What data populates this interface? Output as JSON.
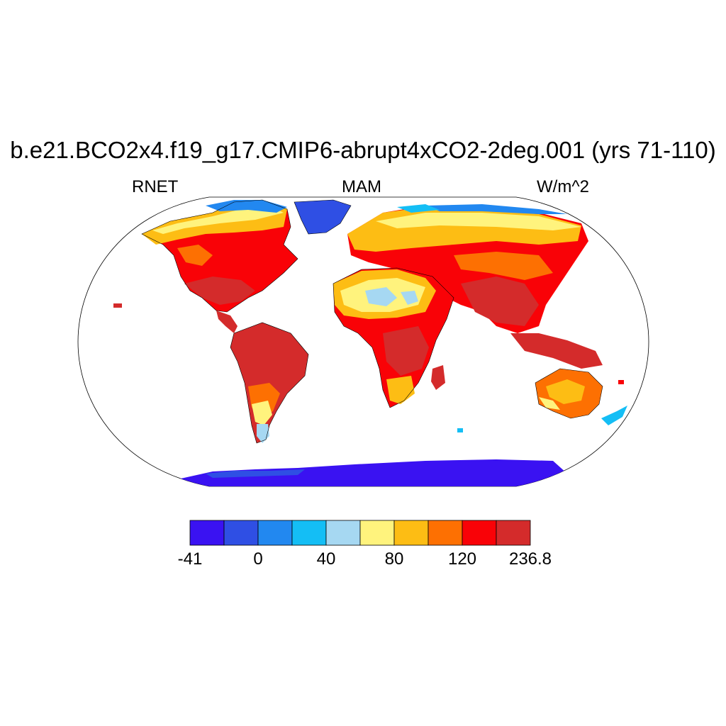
{
  "title": "b.e21.BCO2x4.f19_g17.CMIP6-abrupt4xCO2-2deg.001 (yrs 71-110)",
  "subtitle_left": "RNET",
  "subtitle_center": "MAM",
  "subtitle_right": "W/m^2",
  "colorbar": {
    "colors": [
      "#3a12f2",
      "#2f4fe4",
      "#2288f0",
      "#14bef5",
      "#a6d8f2",
      "#fff37d",
      "#fdbd14",
      "#fd7002",
      "#f90207",
      "#d42b2b"
    ],
    "labels": [
      {
        "text": "-41",
        "index": 0
      },
      {
        "text": "0",
        "index": 2
      },
      {
        "text": "40",
        "index": 4
      },
      {
        "text": "80",
        "index": 6
      },
      {
        "text": "120",
        "index": 8
      },
      {
        "text": "236.8",
        "index": 10
      }
    ]
  }
}
